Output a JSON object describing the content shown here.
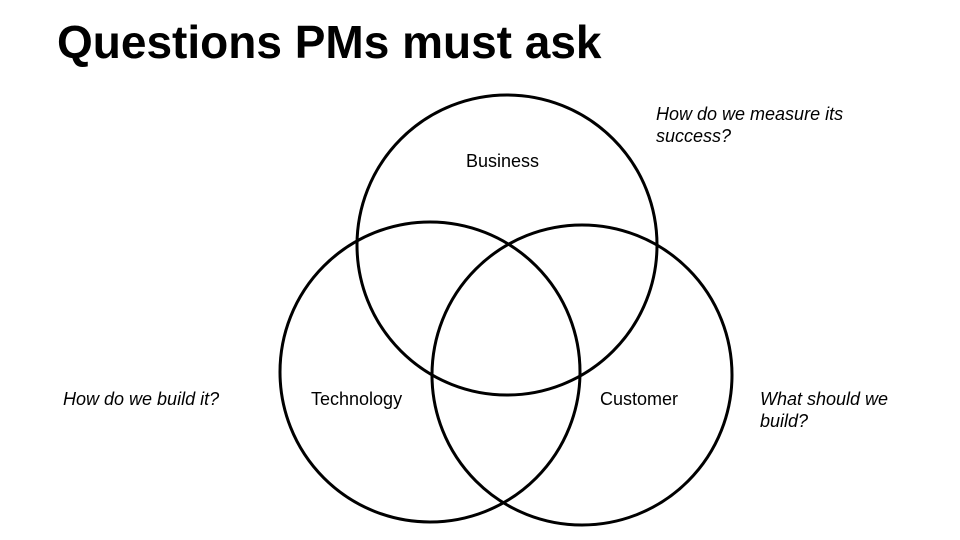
{
  "title": "Questions PMs must ask",
  "circles": {
    "business": {
      "label": "Business"
    },
    "technology": {
      "label": "Technology"
    },
    "customer": {
      "label": "Customer"
    }
  },
  "questions": {
    "business": {
      "line1": "How do we measure its",
      "line2": "success?"
    },
    "technology": {
      "line1": "How do we build it?"
    },
    "customer": {
      "line1": "What should we",
      "line2": "build?"
    }
  },
  "colors": {
    "stroke": "#000000",
    "background": "#ffffff"
  }
}
